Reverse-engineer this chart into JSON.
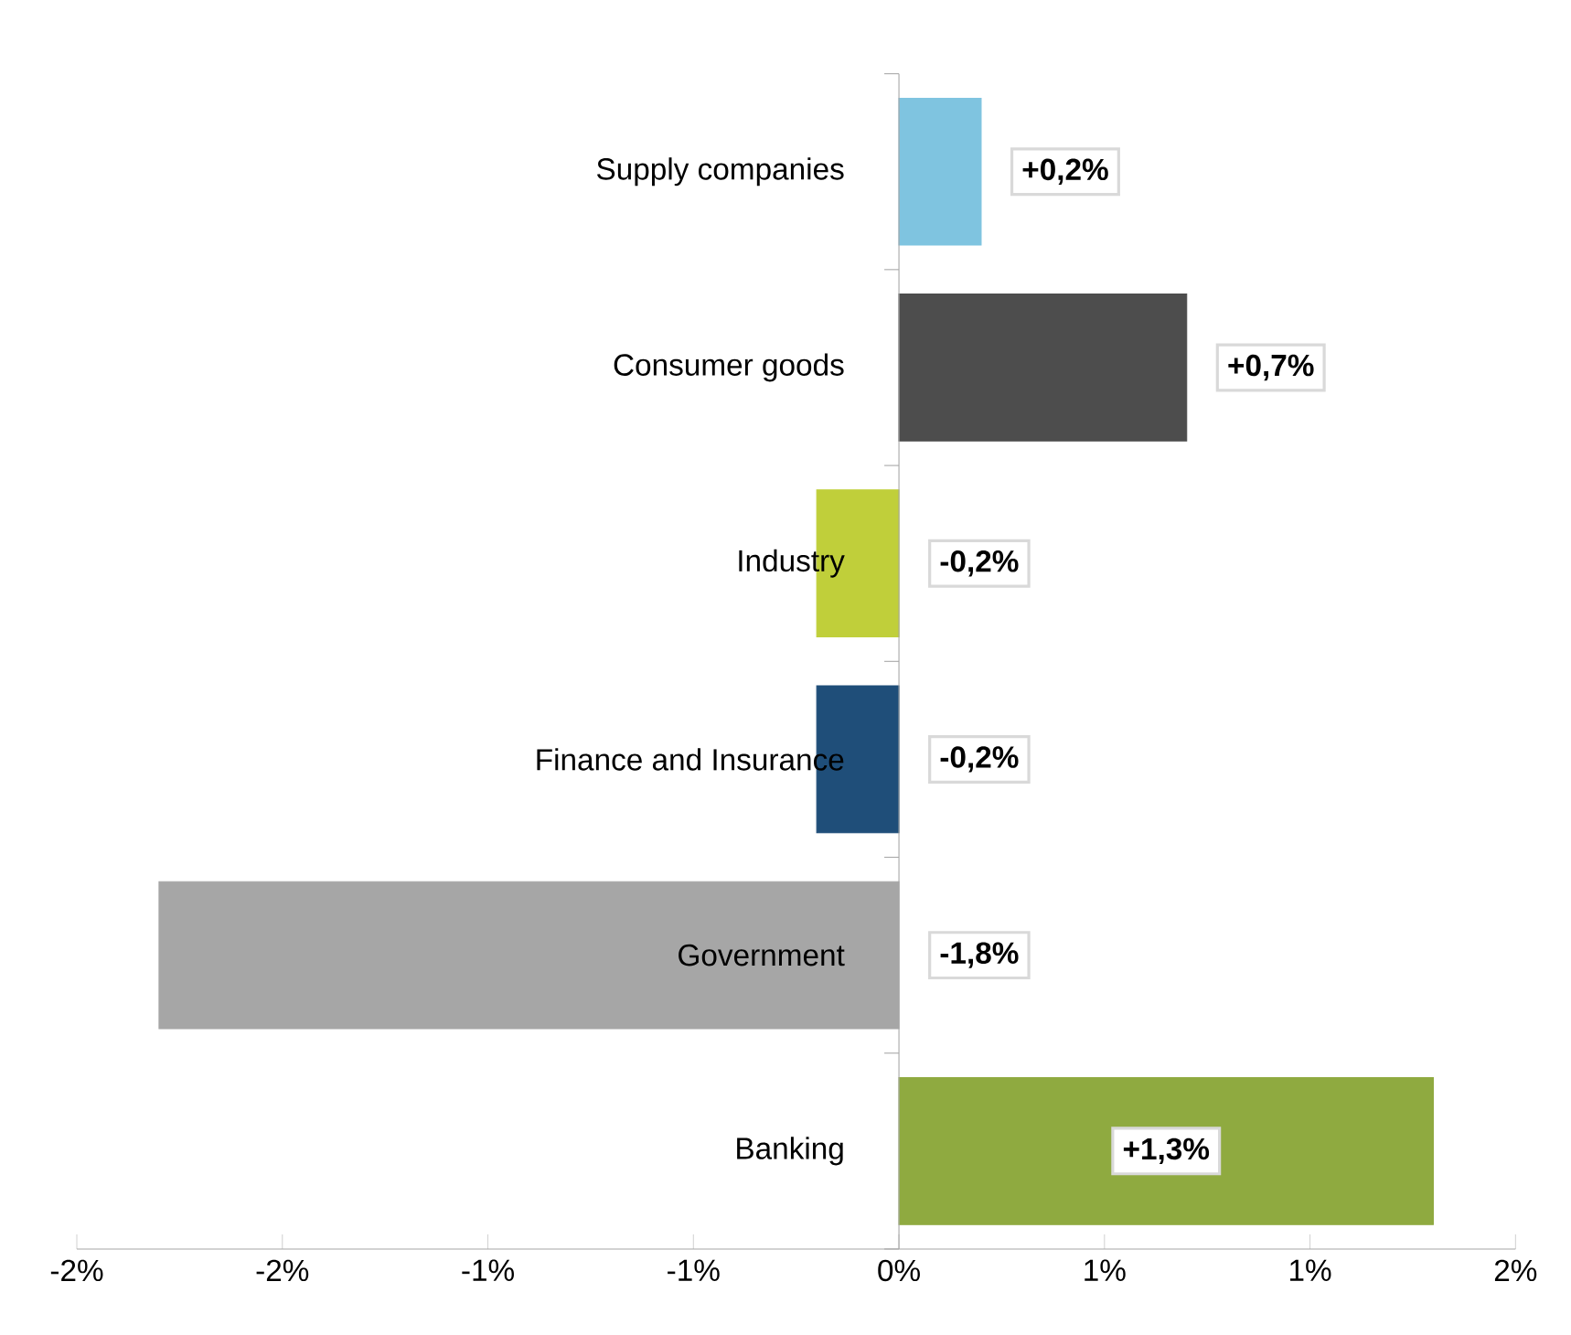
{
  "chart_data": {
    "type": "bar",
    "orientation": "horizontal",
    "categories": [
      "Supply companies",
      "Consumer goods",
      "Industry",
      "Finance and Insurance",
      "Government",
      "Banking"
    ],
    "values": [
      0.2,
      0.7,
      -0.2,
      -0.2,
      -1.8,
      1.3
    ],
    "colors": [
      "#7fc4e0",
      "#4d4d4d",
      "#c0cf3a",
      "#1f4e79",
      "#a6a6a6",
      "#8faa40"
    ],
    "value_labels": [
      "+0,2%",
      "+0,7%",
      "-0,2%",
      "-0,2%",
      "-1,8%",
      "+1,3%"
    ],
    "xlim": [
      -2,
      1.5
    ],
    "xticks": [
      {
        "value": -2,
        "label": "-2%"
      },
      {
        "value": -1.5,
        "label": "-2%"
      },
      {
        "value": -1,
        "label": "-1%"
      },
      {
        "value": -0.5,
        "label": "-1%"
      },
      {
        "value": 0,
        "label": "0%"
      },
      {
        "value": 0.5,
        "label": "1%"
      },
      {
        "value": 1,
        "label": "1%"
      },
      {
        "value": 1.5,
        "label": "2%"
      }
    ],
    "grid": false
  }
}
